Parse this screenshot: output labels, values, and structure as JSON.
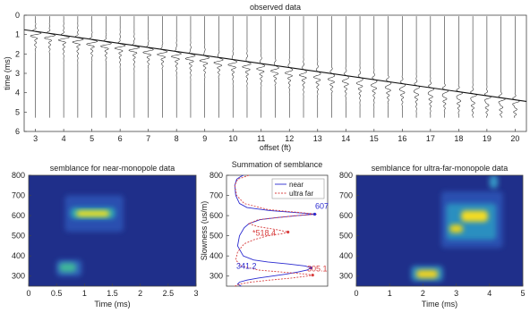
{
  "chart_data": [
    {
      "id": "observed",
      "type": "wiggle",
      "title": "observed data",
      "xlabel": "offset (ft)",
      "ylabel": "time (ms)",
      "xlim": [
        2.6,
        20.4
      ],
      "ylim": [
        0,
        6
      ],
      "y_reversed": true,
      "xticks": [
        3,
        4,
        5,
        6,
        7,
        8,
        9,
        10,
        11,
        12,
        13,
        14,
        15,
        16,
        17,
        18,
        19,
        20
      ],
      "yticks": [
        0,
        1,
        2,
        3,
        4,
        5,
        6
      ],
      "trace_offsets": [
        3.0,
        3.5,
        4.0,
        4.5,
        5.0,
        5.5,
        6.0,
        6.5,
        7.0,
        7.5,
        8.0,
        8.5,
        9.0,
        9.5,
        10.0,
        10.5,
        11.0,
        11.5,
        12.0,
        12.5,
        13.0,
        13.5,
        14.0,
        14.5,
        15.0,
        15.5,
        16.0,
        16.5,
        17.0,
        17.5,
        18.0,
        18.5,
        19.0,
        19.5,
        20.0
      ],
      "arrival_line": {
        "x": [
          2.6,
          20.4
        ],
        "y": [
          0.75,
          4.45
        ]
      }
    },
    {
      "id": "near",
      "type": "heatmap",
      "title": "semblance for near-monopole data",
      "xlabel": "Time (ms)",
      "ylabel": "",
      "xlim": [
        0,
        3
      ],
      "ylim": [
        250,
        800
      ],
      "xticks": [
        0,
        0.5,
        1,
        1.5,
        2,
        2.5,
        3
      ],
      "yticks": [
        300,
        400,
        500,
        600,
        700,
        800
      ],
      "background": "#1f2f8a",
      "blobs": [
        {
          "t": [
            0.85,
            1.45
          ],
          "s": [
            595,
            625
          ],
          "color": "#f6e11a"
        },
        {
          "t": [
            0.75,
            1.55
          ],
          "s": [
            585,
            640
          ],
          "color": "#2aa3b8"
        },
        {
          "t": [
            0.65,
            1.7
          ],
          "s": [
            520,
            700
          ],
          "color": "#2b4fb0"
        },
        {
          "t": [
            0.55,
            0.85
          ],
          "s": [
            320,
            365
          ],
          "color": "#3fb89a"
        },
        {
          "t": [
            0.5,
            0.95
          ],
          "s": [
            300,
            380
          ],
          "color": "#2d62b8"
        }
      ]
    },
    {
      "id": "summation",
      "type": "line",
      "title": "Summation of semblance",
      "xlabel": "",
      "ylabel": "Slowness (us/m)",
      "ylim": [
        250,
        800
      ],
      "yticks": [
        300,
        400,
        500,
        600,
        700,
        800
      ],
      "legend": [
        "near",
        "ultra far"
      ],
      "legend_position": "top-right",
      "series": [
        {
          "name": "near",
          "color": "#2a2ad0",
          "slowness": [
            250,
            260,
            270,
            280,
            290,
            300,
            310,
            320,
            330,
            341,
            350,
            360,
            370,
            380,
            400,
            450,
            500,
            540,
            560,
            580,
            590,
            600,
            607,
            615,
            625,
            640,
            660,
            700,
            750,
            780,
            790,
            800
          ],
          "value": [
            0.12,
            0.08,
            0.1,
            0.18,
            0.3,
            0.45,
            0.6,
            0.72,
            0.82,
            0.86,
            0.8,
            0.62,
            0.4,
            0.25,
            0.14,
            0.08,
            0.1,
            0.15,
            0.2,
            0.32,
            0.5,
            0.72,
            0.9,
            0.7,
            0.42,
            0.18,
            0.1,
            0.06,
            0.05,
            0.07,
            0.1,
            0.14
          ]
        },
        {
          "name": "ultra far",
          "color": "#d84040",
          "slowness": [
            250,
            260,
            270,
            280,
            290,
            300,
            305,
            310,
            320,
            330,
            350,
            380,
            420,
            460,
            480,
            500,
            510,
            518,
            530,
            545,
            560,
            580,
            600,
            607,
            615,
            630,
            660,
            700,
            750,
            780,
            790,
            800
          ],
          "value": [
            0.05,
            0.1,
            0.22,
            0.42,
            0.65,
            0.82,
            0.88,
            0.8,
            0.55,
            0.3,
            0.12,
            0.06,
            0.08,
            0.15,
            0.25,
            0.4,
            0.55,
            0.62,
            0.5,
            0.3,
            0.2,
            0.3,
            0.7,
            0.92,
            0.75,
            0.4,
            0.15,
            0.07,
            0.05,
            0.08,
            0.14,
            0.2
          ]
        }
      ],
      "annotations": [
        {
          "text": "607",
          "slowness": 607,
          "series": "near"
        },
        {
          "text": "*518.4",
          "slowness": 518.4,
          "series": "ultra far"
        },
        {
          "text": "341.2",
          "slowness": 341.2,
          "series": "near"
        },
        {
          "text": "305.1",
          "slowness": 305.1,
          "series": "ultra far"
        }
      ]
    },
    {
      "id": "far",
      "type": "heatmap",
      "title": "semblance for ultra-far-monopole data",
      "xlabel": "Time (ms)",
      "ylabel": "",
      "xlim": [
        0,
        5
      ],
      "ylim": [
        250,
        800
      ],
      "xticks": [
        0,
        1,
        2,
        3,
        4,
        5
      ],
      "yticks": [
        300,
        400,
        500,
        600,
        700,
        800
      ],
      "background": "#1f2f8a",
      "blobs": [
        {
          "t": [
            1.8,
            2.45
          ],
          "s": [
            290,
            330
          ],
          "color": "#f2d31e"
        },
        {
          "t": [
            1.65,
            2.6
          ],
          "s": [
            275,
            350
          ],
          "color": "#2f8cc0"
        },
        {
          "t": [
            2.8,
            3.2
          ],
          "s": [
            515,
            555
          ],
          "color": "#e8d41c"
        },
        {
          "t": [
            3.15,
            3.95
          ],
          "s": [
            570,
            625
          ],
          "color": "#f4dc20"
        },
        {
          "t": [
            2.7,
            4.2
          ],
          "s": [
            480,
            660
          ],
          "color": "#2a8fc0"
        },
        {
          "t": [
            4.0,
            4.25
          ],
          "s": [
            735,
            800
          ],
          "color": "#3496c6"
        },
        {
          "t": [
            2.55,
            4.4
          ],
          "s": [
            440,
            720
          ],
          "color": "#2b4fb0"
        }
      ]
    }
  ]
}
